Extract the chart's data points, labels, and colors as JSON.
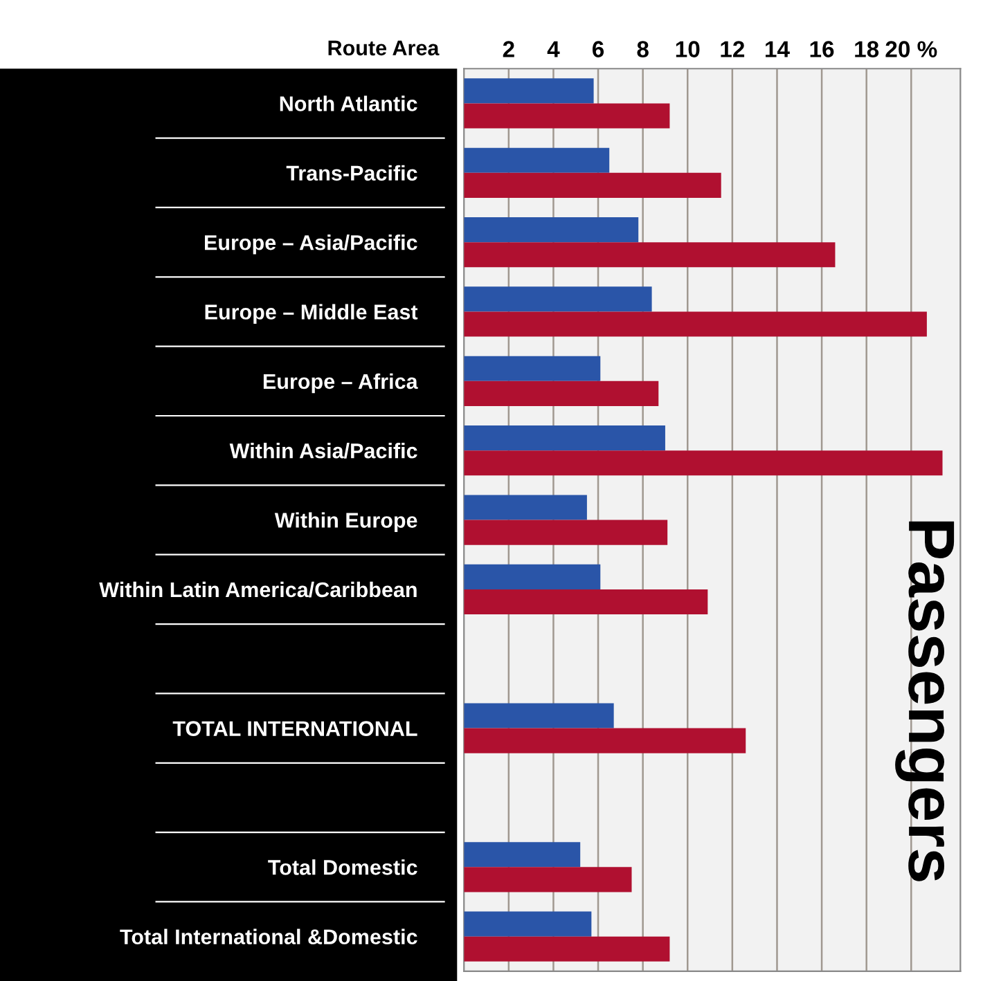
{
  "chart_data": {
    "type": "bar",
    "orientation": "horizontal",
    "title": "Passengers",
    "ylabel": "Route Area",
    "categories": [
      "North Atlantic",
      "Trans-Pacific",
      "Europe – Asia/Pacific",
      "Europe – Middle East",
      "Europe – Africa",
      "Within Asia/Pacific",
      "Within Europe",
      "Within Latin America/Caribbean",
      null,
      "TOTAL INTERNATIONAL",
      null,
      "Total Domestic",
      "Total International &Domestic"
    ],
    "series": [
      {
        "color": "#2a55a8",
        "values": [
          5.8,
          6.5,
          7.8,
          8.4,
          6.1,
          9.0,
          5.5,
          6.1,
          null,
          6.7,
          null,
          5.2,
          5.7
        ]
      },
      {
        "color": "#b01030",
        "values": [
          9.2,
          11.5,
          16.6,
          20.7,
          8.7,
          21.4,
          9.1,
          10.9,
          null,
          12.6,
          null,
          7.5,
          9.2
        ]
      }
    ],
    "xlim": [
      0,
      22.2
    ],
    "xticks": [
      2,
      4,
      6,
      8,
      10,
      12,
      14,
      16,
      18,
      {
        "value": 20,
        "label": "20 %"
      }
    ],
    "grid": "x",
    "legend": false
  }
}
